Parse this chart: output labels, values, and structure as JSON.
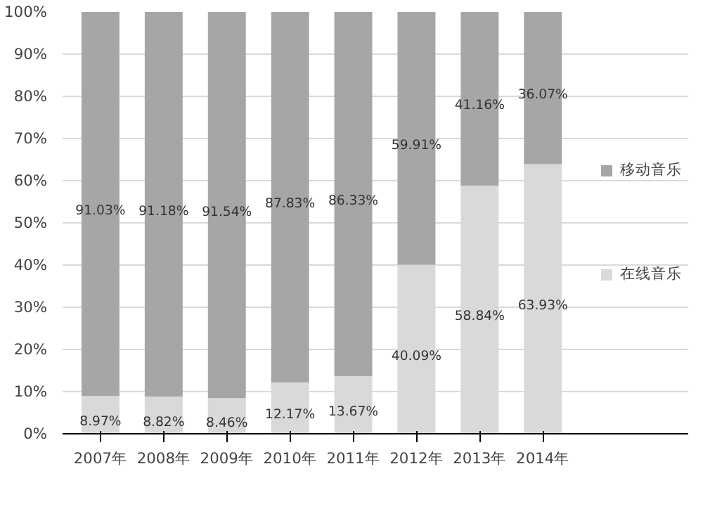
{
  "chart_data": {
    "type": "bar",
    "stacked": true,
    "categories": [
      "2007年",
      "2008年",
      "2009年",
      "2010年",
      "2011年",
      "2012年",
      "2013年",
      "2014年"
    ],
    "series": [
      {
        "name": "在线音乐",
        "color": "#d9d9d9",
        "values": [
          8.97,
          8.82,
          8.46,
          12.17,
          13.67,
          40.09,
          58.84,
          63.93
        ],
        "value_labels": [
          "8.97%",
          "8.82%",
          "8.46%",
          "12.17%",
          "13.67%",
          "40.09%",
          "58.84%",
          "63.93%"
        ]
      },
      {
        "name": "移动音乐",
        "color": "#a6a6a6",
        "values": [
          91.03,
          91.18,
          91.54,
          87.83,
          86.33,
          59.91,
          41.16,
          36.07
        ],
        "value_labels": [
          "91.03%",
          "91.18%",
          "91.54%",
          "87.83%",
          "86.33%",
          "59.91%",
          "41.16%",
          "36.07%"
        ]
      }
    ],
    "ylim": [
      0,
      100
    ],
    "yticks": [
      {
        "value": 0,
        "label": "0%"
      },
      {
        "value": 10,
        "label": "10%"
      },
      {
        "value": 20,
        "label": "20%"
      },
      {
        "value": 30,
        "label": "30%"
      },
      {
        "value": 40,
        "label": "40%"
      },
      {
        "value": 50,
        "label": "50%"
      },
      {
        "value": 60,
        "label": "60%"
      },
      {
        "value": 70,
        "label": "70%"
      },
      {
        "value": 80,
        "label": "80%"
      },
      {
        "value": 90,
        "label": "90%"
      },
      {
        "value": 100,
        "label": "100%"
      }
    ],
    "grid": "y",
    "legend": "right"
  }
}
